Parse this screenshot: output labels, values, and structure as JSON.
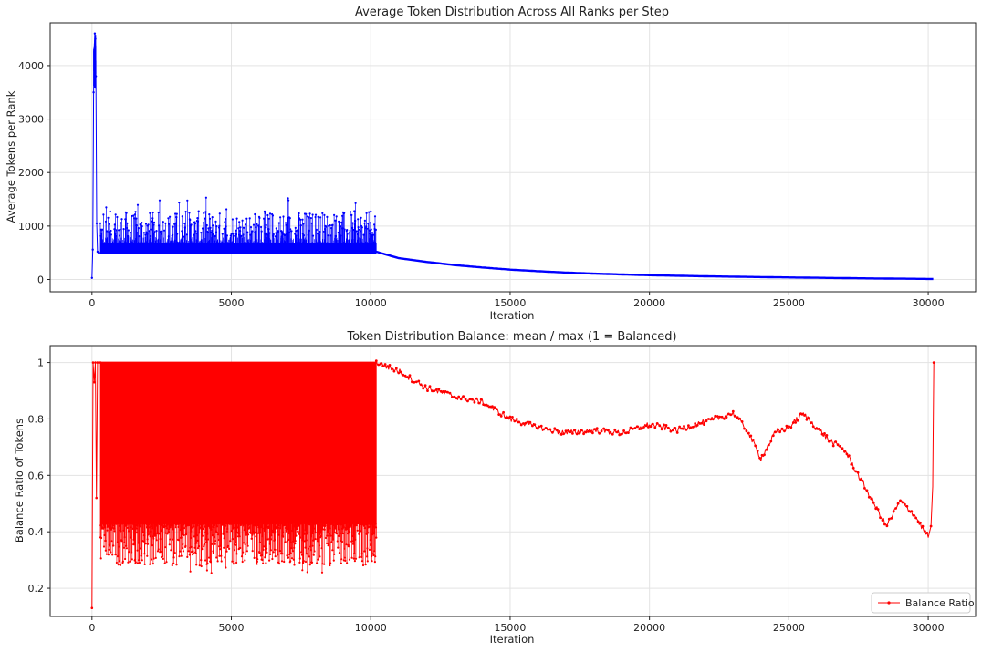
{
  "chart_data": [
    {
      "type": "line",
      "title": "Average Token Distribution Across All Ranks per Step",
      "xlabel": "Iteration",
      "ylabel": "Average Tokens per Rank",
      "xlim": [
        -1500,
        31700
      ],
      "ylim": [
        -230,
        4800
      ],
      "xticks": [
        0,
        5000,
        10000,
        15000,
        20000,
        25000,
        30000
      ],
      "yticks": [
        0,
        1000,
        2000,
        3000,
        4000
      ],
      "grid": true,
      "color": "#0000ff",
      "series": [
        {
          "name": "Average Tokens per Rank",
          "description_points": {
            "startup_spike": [
              [
                0,
                30
              ],
              [
                30,
                560
              ],
              [
                60,
                3500
              ],
              [
                80,
                4300
              ],
              [
                100,
                4600
              ],
              [
                120,
                4500
              ],
              [
                140,
                3800
              ],
              [
                170,
                1050
              ],
              [
                200,
                520
              ]
            ],
            "noisy_band": {
              "x_range": [
                300,
                10200
              ],
              "floor": 500,
              "typical_peak": 1100,
              "max_peak": 1550
            },
            "decay": [
              [
                10200,
                520
              ],
              [
                11000,
                400
              ],
              [
                12000,
                330
              ],
              [
                13000,
                270
              ],
              [
                14000,
                225
              ],
              [
                15000,
                185
              ],
              [
                16000,
                155
              ],
              [
                17000,
                130
              ],
              [
                18000,
                110
              ],
              [
                19000,
                95
              ],
              [
                20000,
                80
              ],
              [
                22000,
                60
              ],
              [
                24000,
                45
              ],
              [
                26000,
                32
              ],
              [
                28000,
                20
              ],
              [
                30200,
                10
              ]
            ]
          }
        }
      ]
    },
    {
      "type": "line",
      "title": "Token Distribution Balance: mean / max (1 = Balanced)",
      "xlabel": "Iteration",
      "ylabel": "Balance Ratio of Tokens",
      "xlim": [
        -1500,
        31700
      ],
      "ylim": [
        0.1,
        1.06
      ],
      "xticks": [
        0,
        5000,
        10000,
        15000,
        20000,
        25000,
        30000
      ],
      "yticks": [
        0.2,
        0.4,
        0.6,
        0.8,
        1.0
      ],
      "grid": true,
      "legend": {
        "entries": [
          "Balance Ratio"
        ],
        "position": "lower-right"
      },
      "color": "#ff0000",
      "series": [
        {
          "name": "Balance Ratio",
          "description_points": {
            "startup": [
              [
                0,
                0.13
              ],
              [
                40,
                1.0
              ],
              [
                80,
                0.93
              ],
              [
                120,
                1.0
              ],
              [
                160,
                0.52
              ],
              [
                200,
                1.0
              ],
              [
                300,
                1.0
              ]
            ],
            "noisy_band": {
              "x_range": [
                300,
                10200
              ],
              "top": 1.0,
              "typical_bottom": 0.4,
              "min_bottom": 0.25
            },
            "tail": [
              [
                10200,
                1.0
              ],
              [
                11000,
                0.97
              ],
              [
                12000,
                0.91
              ],
              [
                13000,
                0.88
              ],
              [
                14000,
                0.86
              ],
              [
                15000,
                0.8
              ],
              [
                16000,
                0.77
              ],
              [
                17000,
                0.75
              ],
              [
                18000,
                0.76
              ],
              [
                19000,
                0.75
              ],
              [
                20000,
                0.78
              ],
              [
                21000,
                0.76
              ],
              [
                22000,
                0.79
              ],
              [
                23000,
                0.82
              ],
              [
                23500,
                0.76
              ],
              [
                24000,
                0.66
              ],
              [
                24500,
                0.75
              ],
              [
                25000,
                0.77
              ],
              [
                25500,
                0.82
              ],
              [
                26000,
                0.77
              ],
              [
                26500,
                0.72
              ],
              [
                27000,
                0.69
              ],
              [
                27500,
                0.6
              ],
              [
                28000,
                0.51
              ],
              [
                28500,
                0.42
              ],
              [
                29000,
                0.51
              ],
              [
                29500,
                0.46
              ],
              [
                30000,
                0.38
              ],
              [
                30100,
                0.56
              ],
              [
                30200,
                1.0
              ]
            ]
          }
        }
      ]
    }
  ]
}
